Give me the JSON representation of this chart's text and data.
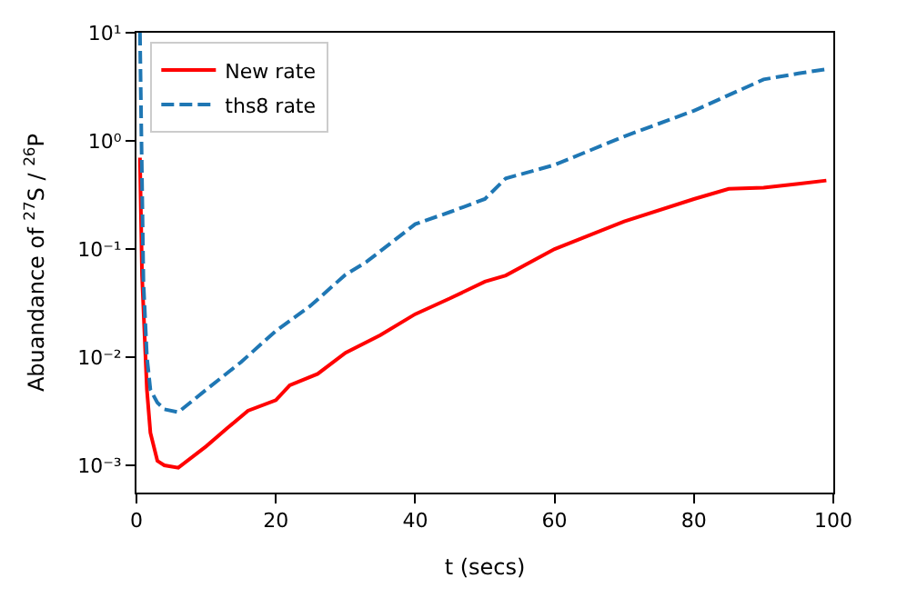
{
  "chart_data": {
    "type": "line",
    "xlabel": "t (secs)",
    "ylabel": "Abuandance of $^{27}$S / $^{26}$P",
    "log": "y",
    "xlim": [
      0,
      100
    ],
    "xticks": [
      0,
      20,
      40,
      60,
      80,
      100
    ],
    "ylim": [
      0.00056,
      10
    ],
    "yticks": [
      {
        "value": 0.001,
        "label": "10⁻³"
      },
      {
        "value": 0.01,
        "label": "10⁻²"
      },
      {
        "value": 0.1,
        "label": "10⁻¹"
      },
      {
        "value": 1,
        "label": "10⁰"
      },
      {
        "value": 10,
        "label": "10¹"
      }
    ],
    "legend": "top left",
    "series": [
      {
        "name": "New rate",
        "color": "#ff0000",
        "line_style": "solid",
        "x": [
          0.5,
          0.8,
          1.5,
          2,
          3,
          4,
          6,
          10,
          13,
          16,
          20,
          22,
          26,
          30,
          35,
          40,
          45,
          50,
          53,
          60,
          70,
          80,
          85,
          90,
          95,
          99
        ],
        "values": [
          0.7,
          0.057,
          0.005,
          0.002,
          0.0011,
          0.001,
          0.00095,
          0.0015,
          0.0022,
          0.0032,
          0.004,
          0.0055,
          0.007,
          0.011,
          0.016,
          0.025,
          0.035,
          0.05,
          0.057,
          0.1,
          0.18,
          0.29,
          0.36,
          0.37,
          0.4,
          0.43
        ]
      },
      {
        "name": "ths8 rate",
        "color": "#1f77b4",
        "line_style": "dashed",
        "x": [
          0.5,
          1,
          1.5,
          2,
          3,
          4,
          6,
          10,
          15,
          20,
          25,
          30,
          33,
          40,
          45,
          50,
          53,
          60,
          70,
          80,
          90,
          95,
          99
        ],
        "values": [
          10,
          0.05,
          0.01,
          0.005,
          0.0038,
          0.0033,
          0.0031,
          0.005,
          0.009,
          0.0175,
          0.03,
          0.058,
          0.076,
          0.17,
          0.22,
          0.29,
          0.45,
          0.6,
          1.1,
          1.9,
          3.7,
          4.2,
          4.6
        ]
      }
    ]
  }
}
